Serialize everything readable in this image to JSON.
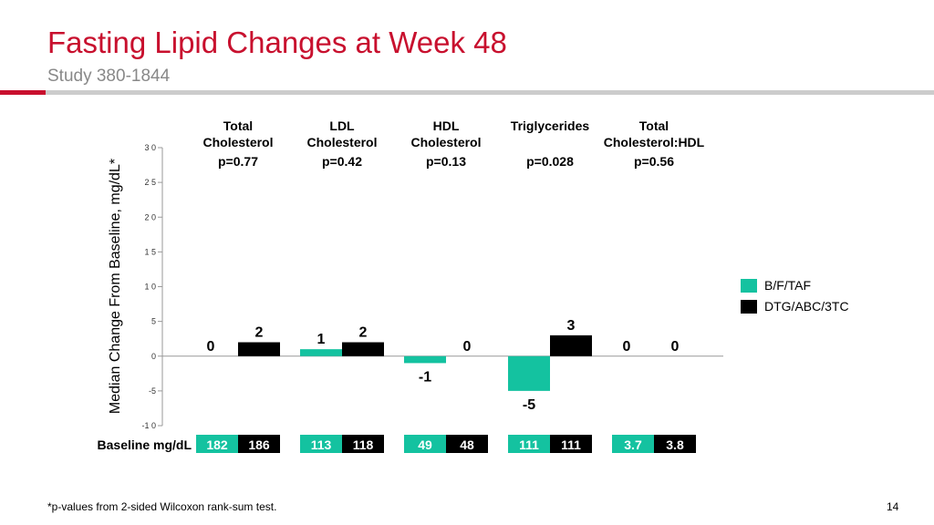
{
  "slide": {
    "title": "Fasting Lipid Changes at Week 48",
    "subtitle": "Study 380-1844",
    "footnote": "*p-values from 2-sided Wilcoxon rank-sum test.",
    "page_number": "14",
    "accent_color": "#c8102e",
    "rule_color": "#cccccc"
  },
  "chart_data": {
    "type": "bar",
    "ylabel": "Median Change From Baseline, mg/dL*",
    "ylim": [
      -10,
      30
    ],
    "yticks": [
      30,
      25,
      20,
      15,
      10,
      5,
      0,
      -5,
      -10
    ],
    "ytick_labels": [
      "3 0",
      "2 5",
      "2 0",
      "1 5",
      "1 0",
      "5",
      "0",
      "-5",
      "-1 0"
    ],
    "categories": [
      {
        "label_lines": [
          "Total",
          "Cholesterol"
        ],
        "pvalue": "p=0.77"
      },
      {
        "label_lines": [
          "LDL",
          "Cholesterol"
        ],
        "pvalue": "p=0.42"
      },
      {
        "label_lines": [
          "HDL",
          "Cholesterol"
        ],
        "pvalue": "p=0.13"
      },
      {
        "label_lines": [
          "Triglycerides"
        ],
        "pvalue": "p=0.028"
      },
      {
        "label_lines": [
          "Total",
          "Cholesterol:HDL"
        ],
        "pvalue": "p=0.56"
      }
    ],
    "series": [
      {
        "name": "B/F/TAF",
        "color": "#14c2a0",
        "values": [
          0,
          1,
          -1,
          -5,
          0
        ],
        "value_labels": [
          "0",
          "1",
          "-1",
          "-5",
          "0"
        ],
        "baseline": [
          "182",
          "113",
          "49",
          "111",
          "3.7"
        ]
      },
      {
        "name": "DTG/ABC/3TC",
        "color": "#000000",
        "values": [
          2,
          2,
          0,
          3,
          0
        ],
        "value_labels": [
          "2",
          "2",
          "0",
          "3",
          "0"
        ],
        "baseline": [
          "186",
          "118",
          "48",
          "111",
          "3.8"
        ]
      }
    ],
    "baseline_label": "Baseline mg/dL",
    "legend_position": "right",
    "grid": false
  }
}
